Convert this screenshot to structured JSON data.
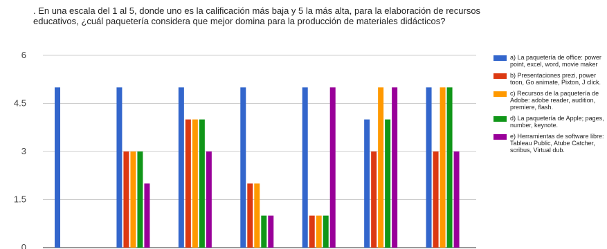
{
  "chart_data": {
    "type": "bar",
    "title": ". En una escala del 1 al 5, donde uno es la calificación más baja y 5 la más alta, para la elaboración de recursos educativos, ¿cuál paquetería considera que mejor domina para la producción de materiales didácticos?",
    "xlabel": "",
    "ylabel": "",
    "ylim": [
      0,
      6
    ],
    "yticks": [
      0,
      1.5,
      3,
      4.5,
      6
    ],
    "ytick_labels": [
      "0",
      "1.5",
      "3",
      "4.5",
      "6"
    ],
    "grid": true,
    "legend_position": "right",
    "categories": [
      "",
      "",
      "",
      "",
      "",
      "",
      ""
    ],
    "series": [
      {
        "name": "a) La paquetería de office: power point, excel, word, movie maker",
        "color": "#3366cc",
        "values": [
          5,
          5,
          5,
          5,
          5,
          4,
          5
        ]
      },
      {
        "name": "b) Presentaciones prezi, power toon, Go animate, Pixton, J click.",
        "color": "#dc3912",
        "values": [
          null,
          3,
          4,
          2,
          1,
          3,
          3
        ]
      },
      {
        "name": "c) Recursos de la paquetería de Adobe: adobe reader, audition, premiere, flash.",
        "color": "#ff9900",
        "values": [
          null,
          3,
          4,
          2,
          1,
          5,
          5
        ]
      },
      {
        "name": "d) La paquetería de Apple; pages, number, keynote.",
        "color": "#109618",
        "values": [
          null,
          3,
          4,
          1,
          1,
          4,
          5
        ]
      },
      {
        "name": "e) Herramientas de software libre: Tableau Public, Atube Catcher, scribus, Virtual dub.",
        "color": "#990099",
        "values": [
          null,
          2,
          3,
          1,
          5,
          5,
          3
        ]
      }
    ]
  }
}
